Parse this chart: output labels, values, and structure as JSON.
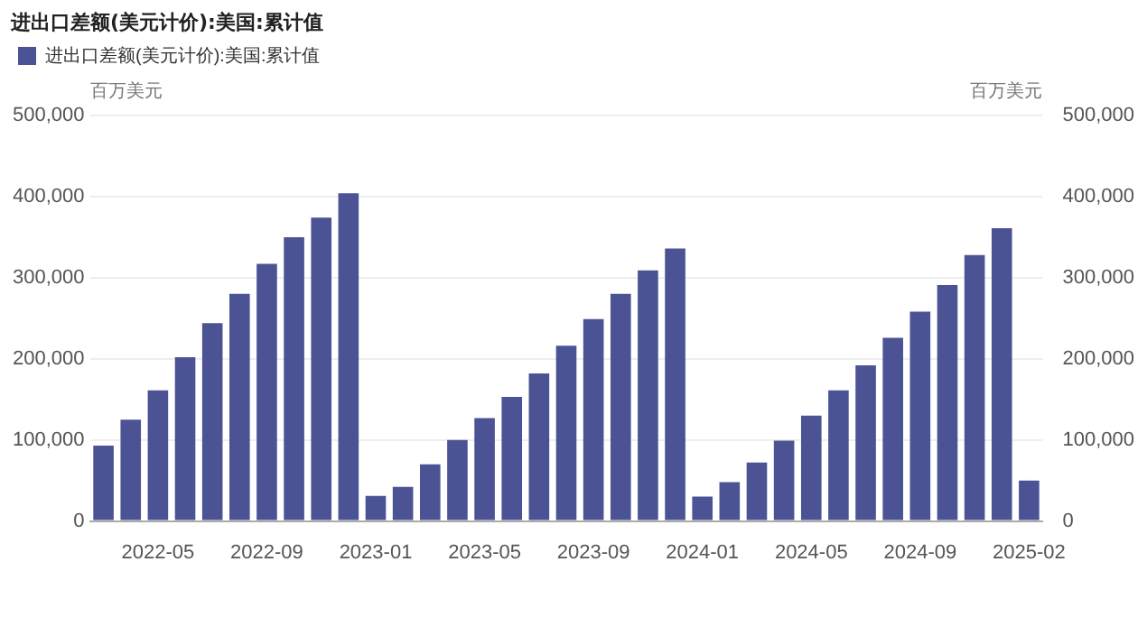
{
  "chart_data": {
    "type": "bar",
    "title": "进出口差额(美元计价):美国:累计值",
    "categories": [
      null,
      null,
      "2022-05",
      null,
      null,
      null,
      "2022-09",
      null,
      null,
      null,
      "2023-01",
      null,
      null,
      null,
      "2023-05",
      null,
      null,
      null,
      "2023-09",
      null,
      null,
      null,
      "2024-01",
      null,
      null,
      null,
      "2024-05",
      null,
      null,
      null,
      "2024-09",
      null,
      null,
      null,
      "2025-02"
    ],
    "series": [
      {
        "name": "进出口差额(美元计价):美国:累计值",
        "color": "#4b5394",
        "values": [
          93000,
          125000,
          161000,
          202000,
          244000,
          280000,
          317000,
          350000,
          374000,
          404000,
          31000,
          42000,
          70000,
          100000,
          127000,
          153000,
          182000,
          216000,
          249000,
          280000,
          309000,
          336000,
          30000,
          48000,
          72000,
          99000,
          130000,
          161000,
          192000,
          226000,
          258000,
          291000,
          328000,
          361000,
          50000
        ]
      }
    ],
    "ylabel": "百万美元",
    "y2label": "百万美元",
    "ylim": [
      0,
      500000
    ],
    "yticks": [
      0,
      {
        "value": 100000,
        "label": "100,000"
      },
      {
        "value": 200000,
        "label": "200,000"
      },
      {
        "value": 300000,
        "label": "300,000"
      },
      {
        "value": 400000,
        "label": "400,000"
      },
      {
        "value": 500000,
        "label": "500,000"
      }
    ],
    "y2lim": [
      0,
      500000
    ],
    "y2ticks": [
      0,
      {
        "value": 100000,
        "label": "100,000"
      },
      {
        "value": 200000,
        "label": "200,000"
      },
      {
        "value": 300000,
        "label": "300,000"
      },
      {
        "value": 400000,
        "label": "400,000"
      },
      {
        "value": 500000,
        "label": "500,000"
      }
    ],
    "grid": "y",
    "legend": "top left"
  }
}
